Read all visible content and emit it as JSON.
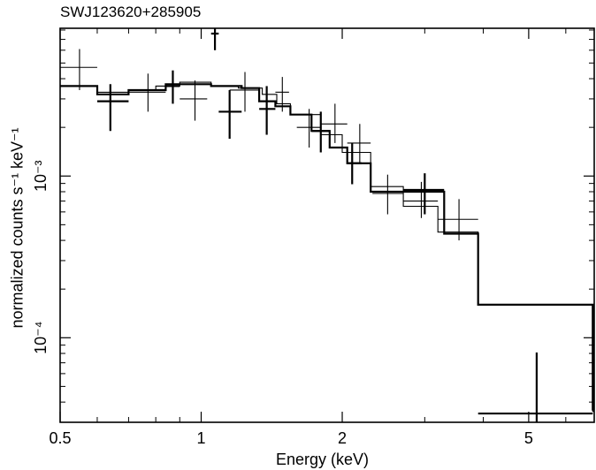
{
  "chart_data": {
    "type": "scatter",
    "title": "SWJ123620+285905",
    "xlabel": "Energy (keV)",
    "ylabel": "normalized counts s⁻¹ keV⁻¹",
    "xscale": "log",
    "yscale": "log",
    "xlim": [
      0.5,
      6.9
    ],
    "ylim": [
      3e-05,
      0.0082
    ],
    "xticks": [
      {
        "value": 0.5,
        "label": "0.5"
      },
      {
        "value": 1,
        "label": "1"
      },
      {
        "value": 2,
        "label": "2"
      },
      {
        "value": 5,
        "label": "5"
      }
    ],
    "yticks": [
      {
        "value": 0.0001,
        "label": "10⁻⁴"
      },
      {
        "value": 0.001,
        "label": "10⁻³"
      }
    ],
    "series": [
      {
        "style": "thin",
        "points": [
          {
            "x": 0.55,
            "xlo": 0.5,
            "xhi": 0.6,
            "y": 0.0047,
            "ylo": 0.0034,
            "yhi": 0.0061
          },
          {
            "x": 0.77,
            "xlo": 0.7,
            "xhi": 0.84,
            "y": 0.0033,
            "ylo": 0.0025,
            "yhi": 0.0043
          },
          {
            "x": 0.97,
            "xlo": 0.9,
            "xhi": 1.03,
            "y": 0.003,
            "ylo": 0.0022,
            "yhi": 0.0039
          },
          {
            "x": 1.24,
            "xlo": 1.15,
            "xhi": 1.33,
            "y": 0.0034,
            "ylo": 0.0025,
            "yhi": 0.0044
          },
          {
            "x": 1.49,
            "xlo": 1.44,
            "xhi": 1.54,
            "y": 0.0033,
            "ylo": 0.0025,
            "yhi": 0.0041
          },
          {
            "x": 1.7,
            "xlo": 1.6,
            "xhi": 1.8,
            "y": 0.002,
            "ylo": 0.0015,
            "yhi": 0.0026
          },
          {
            "x": 1.93,
            "xlo": 1.8,
            "xhi": 2.05,
            "y": 0.0021,
            "ylo": 0.0016,
            "yhi": 0.0028
          },
          {
            "x": 2.18,
            "xlo": 2.05,
            "xhi": 2.3,
            "y": 0.0016,
            "ylo": 0.0012,
            "yhi": 0.0021
          },
          {
            "x": 2.5,
            "xlo": 2.32,
            "xhi": 2.7,
            "y": 0.00078,
            "ylo": 0.00058,
            "yhi": 0.00102
          },
          {
            "x": 2.95,
            "xlo": 2.7,
            "xhi": 3.2,
            "y": 0.0007,
            "ylo": 0.00055,
            "yhi": 0.00092
          },
          {
            "x": 3.55,
            "xlo": 3.2,
            "xhi": 3.9,
            "y": 0.00054,
            "ylo": 0.0004,
            "yhi": 0.00072
          }
        ],
        "model_steps": [
          {
            "xlo": 0.5,
            "xhi": 0.6,
            "y": 0.0036
          },
          {
            "xlo": 0.6,
            "xhi": 0.7,
            "y": 0.0033
          },
          {
            "xlo": 0.7,
            "xhi": 0.8,
            "y": 0.0034
          },
          {
            "xlo": 0.8,
            "xhi": 0.9,
            "y": 0.0036
          },
          {
            "xlo": 0.9,
            "xhi": 1.05,
            "y": 0.0038
          },
          {
            "xlo": 1.05,
            "xhi": 1.2,
            "y": 0.0036
          },
          {
            "xlo": 1.2,
            "xhi": 1.35,
            "y": 0.0035
          },
          {
            "xlo": 1.35,
            "xhi": 1.45,
            "y": 0.0032
          },
          {
            "xlo": 1.45,
            "xhi": 1.55,
            "y": 0.0028
          },
          {
            "xlo": 1.55,
            "xhi": 1.8,
            "y": 0.0024
          },
          {
            "xlo": 1.8,
            "xhi": 2.0,
            "y": 0.0018
          },
          {
            "xlo": 2.0,
            "xhi": 2.3,
            "y": 0.0014
          },
          {
            "xlo": 2.3,
            "xhi": 2.7,
            "y": 0.00086
          },
          {
            "xlo": 2.7,
            "xhi": 3.2,
            "y": 0.00065
          },
          {
            "xlo": 3.2,
            "xhi": 3.9,
            "y": 0.00045
          },
          {
            "xlo": 3.9,
            "xhi": 6.85,
            "y": 0.00016
          },
          {
            "xlo": 6.85,
            "xhi": 6.9,
            "y": 3.5e-05
          }
        ]
      },
      {
        "style": "thick",
        "points": [
          {
            "x": 0.64,
            "xlo": 0.6,
            "xhi": 0.7,
            "y": 0.0029,
            "ylo": 0.0019,
            "yhi": 0.0037
          },
          {
            "x": 0.87,
            "xlo": 0.84,
            "xhi": 0.9,
            "y": 0.0036,
            "ylo": 0.0028,
            "yhi": 0.0045
          },
          {
            "x": 1.07,
            "xlo": 1.05,
            "xhi": 1.09,
            "y": 0.0076,
            "ylo": 0.006,
            "yhi": 0.0082
          },
          {
            "x": 1.15,
            "xlo": 1.09,
            "xhi": 1.22,
            "y": 0.0025,
            "ylo": 0.0017,
            "yhi": 0.0034
          },
          {
            "x": 1.38,
            "xlo": 1.33,
            "xhi": 1.44,
            "y": 0.0026,
            "ylo": 0.0018,
            "yhi": 0.0036
          },
          {
            "x": 1.8,
            "xlo": 1.72,
            "xhi": 1.88,
            "y": 0.0019,
            "ylo": 0.0014,
            "yhi": 0.0025
          },
          {
            "x": 2.1,
            "xlo": 2.05,
            "xhi": 2.2,
            "y": 0.0012,
            "ylo": 0.00089,
            "yhi": 0.0016
          },
          {
            "x": 3.0,
            "xlo": 2.7,
            "xhi": 3.3,
            "y": 0.00082,
            "ylo": 0.00058,
            "yhi": 0.00104
          },
          {
            "x": 5.2,
            "xlo": 3.9,
            "xhi": 6.85,
            "y": 3.4e-05,
            "ylo": 3e-05,
            "yhi": 8.1e-05
          },
          {
            "x": 6.88,
            "xlo": 6.86,
            "xhi": 6.9,
            "y": 7.2e-05,
            "ylo": 3.6e-05,
            "yhi": 5e-05
          }
        ],
        "model_steps": [
          {
            "xlo": 0.5,
            "xhi": 0.6,
            "y": 0.0036
          },
          {
            "xlo": 0.6,
            "xhi": 0.7,
            "y": 0.0032
          },
          {
            "xlo": 0.7,
            "xhi": 0.84,
            "y": 0.0034
          },
          {
            "xlo": 0.84,
            "xhi": 0.9,
            "y": 0.0037
          },
          {
            "xlo": 0.9,
            "xhi": 1.05,
            "y": 0.0037
          },
          {
            "xlo": 1.05,
            "xhi": 1.22,
            "y": 0.0036
          },
          {
            "xlo": 1.22,
            "xhi": 1.33,
            "y": 0.0035
          },
          {
            "xlo": 1.33,
            "xhi": 1.44,
            "y": 0.0029
          },
          {
            "xlo": 1.44,
            "xhi": 1.55,
            "y": 0.0027
          },
          {
            "xlo": 1.55,
            "xhi": 1.72,
            "y": 0.0024
          },
          {
            "xlo": 1.72,
            "xhi": 1.88,
            "y": 0.0019
          },
          {
            "xlo": 1.88,
            "xhi": 2.05,
            "y": 0.0015
          },
          {
            "xlo": 2.05,
            "xhi": 2.3,
            "y": 0.0012
          },
          {
            "xlo": 2.3,
            "xhi": 2.7,
            "y": 0.0008
          },
          {
            "xlo": 2.7,
            "xhi": 3.3,
            "y": 0.0008
          },
          {
            "xlo": 3.3,
            "xhi": 3.9,
            "y": 0.00044
          },
          {
            "xlo": 3.9,
            "xhi": 6.85,
            "y": 0.00016
          },
          {
            "xlo": 6.85,
            "xhi": 6.9,
            "y": 3.6e-05
          }
        ]
      }
    ],
    "grid": false,
    "legend": "none"
  }
}
